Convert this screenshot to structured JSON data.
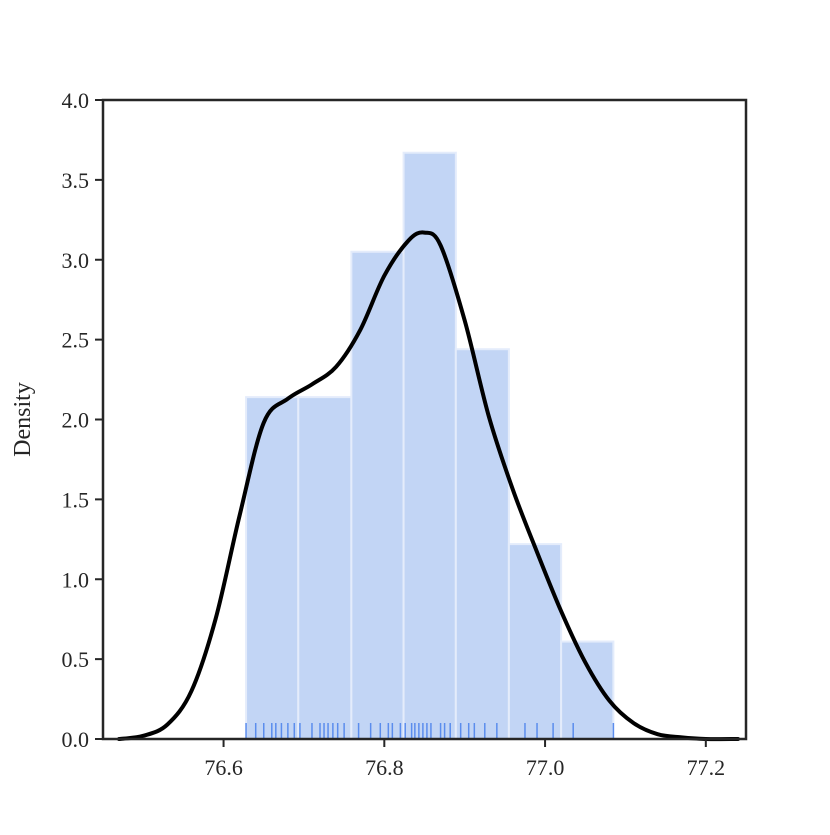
{
  "chart_data": {
    "type": "histogram",
    "title": "",
    "xlabel": "",
    "ylabel": "Density",
    "xlim": [
      76.45,
      77.25
    ],
    "ylim": [
      0.0,
      4.0
    ],
    "x_ticks": [
      76.6,
      76.8,
      77.0,
      77.2
    ],
    "x_tick_labels": [
      "76.6",
      "76.8",
      "77.0",
      "77.2"
    ],
    "y_ticks": [
      0.0,
      0.5,
      1.0,
      1.5,
      2.0,
      2.5,
      3.0,
      3.5,
      4.0
    ],
    "y_tick_labels": [
      "0.0",
      "0.5",
      "1.0",
      "1.5",
      "2.0",
      "2.5",
      "3.0",
      "3.5",
      "4.0"
    ],
    "grid": false,
    "legend": null,
    "histogram": {
      "bin_edges": [
        76.628,
        76.693,
        76.759,
        76.824,
        76.889,
        76.955,
        77.02,
        77.085
      ],
      "density": [
        2.14,
        2.14,
        3.05,
        3.67,
        2.44,
        1.22,
        0.61
      ],
      "color": "#c2d5f5",
      "edge_color": "#e4ecfb"
    },
    "kde": {
      "color": "#000000",
      "x": [
        76.47,
        76.5,
        76.53,
        76.56,
        76.59,
        76.62,
        76.65,
        76.68,
        76.71,
        76.74,
        76.77,
        76.8,
        76.83,
        76.85,
        76.87,
        76.9,
        76.93,
        76.96,
        76.99,
        77.02,
        77.05,
        77.08,
        77.11,
        77.14,
        77.17,
        77.2,
        77.24
      ],
      "y": [
        0.0,
        0.02,
        0.09,
        0.3,
        0.75,
        1.4,
        1.98,
        2.13,
        2.22,
        2.33,
        2.56,
        2.9,
        3.12,
        3.17,
        3.09,
        2.62,
        2.02,
        1.56,
        1.17,
        0.8,
        0.48,
        0.24,
        0.1,
        0.03,
        0.01,
        0.0,
        0.0
      ]
    },
    "rug": {
      "color": "#5b8ded",
      "x": [
        76.628,
        76.64,
        76.65,
        76.66,
        76.665,
        76.672,
        76.68,
        76.688,
        76.695,
        76.71,
        76.72,
        76.725,
        76.73,
        76.736,
        76.742,
        76.75,
        76.768,
        76.783,
        76.795,
        76.805,
        76.81,
        76.82,
        76.826,
        76.834,
        76.838,
        76.843,
        76.848,
        76.853,
        76.858,
        76.87,
        76.875,
        76.882,
        76.895,
        76.905,
        76.912,
        76.925,
        76.94,
        76.975,
        76.99,
        77.01,
        77.035,
        77.085
      ]
    }
  }
}
